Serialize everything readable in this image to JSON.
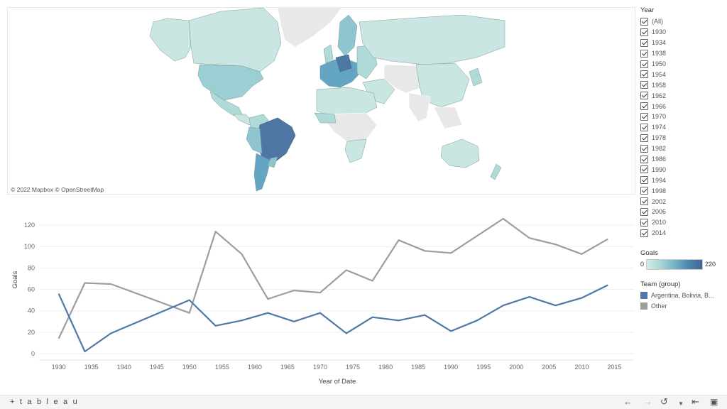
{
  "map": {
    "credit": "© 2022 Mapbox  © OpenStreetMap",
    "fills": {
      "no_data": "#e8e8e8",
      "low": "#c9e6e2",
      "mid_low": "#aedad7",
      "mid": "#8ec5cf",
      "high": "#65a5c4",
      "max": "#4e77a3"
    }
  },
  "filters": {
    "year_title": "Year",
    "years": [
      "(All)",
      "1930",
      "1934",
      "1938",
      "1950",
      "1954",
      "1958",
      "1962",
      "1966",
      "1970",
      "1974",
      "1978",
      "1982",
      "1986",
      "1990",
      "1994",
      "1998",
      "2002",
      "2006",
      "2010",
      "2014"
    ]
  },
  "goals_legend": {
    "title": "Goals",
    "min": "0",
    "max": "220"
  },
  "team_legend": {
    "title": "Team (group)",
    "items": [
      {
        "label": "Argentina, Bolivia, B...",
        "color": "#4e79a7"
      },
      {
        "label": "Other",
        "color": "#9d9d9d"
      }
    ]
  },
  "chart_data": {
    "type": "line",
    "xlabel": "Year of Date",
    "ylabel": "Goals",
    "xlim": [
      1927,
      2018
    ],
    "ylim": [
      0,
      130
    ],
    "xticks": [
      "1930",
      "1935",
      "1940",
      "1945",
      "1950",
      "1955",
      "1960",
      "1965",
      "1970",
      "1975",
      "1980",
      "1985",
      "1990",
      "1995",
      "2000",
      "2005",
      "2010",
      "2015"
    ],
    "yticks": [
      "0",
      "20",
      "40",
      "60",
      "80",
      "100",
      "120"
    ],
    "x": [
      1930,
      1934,
      1938,
      1950,
      1954,
      1958,
      1962,
      1966,
      1970,
      1974,
      1978,
      1982,
      1986,
      1990,
      1994,
      1998,
      2002,
      2006,
      2010,
      2014
    ],
    "series": [
      {
        "name": "Argentina, Bolivia, B...",
        "color": "#4e79a7",
        "values": [
          56,
          2,
          19,
          50,
          26,
          31,
          38,
          30,
          38,
          19,
          34,
          31,
          36,
          21,
          31,
          45,
          53,
          45,
          52,
          64
        ]
      },
      {
        "name": "Other",
        "color": "#9d9d9d",
        "values": [
          14,
          66,
          65,
          38,
          114,
          93,
          51,
          59,
          57,
          78,
          68,
          106,
          96,
          94,
          110,
          126,
          108,
          102,
          93,
          107
        ]
      }
    ]
  },
  "footer": {
    "brand": "+ t a b l e a u"
  }
}
